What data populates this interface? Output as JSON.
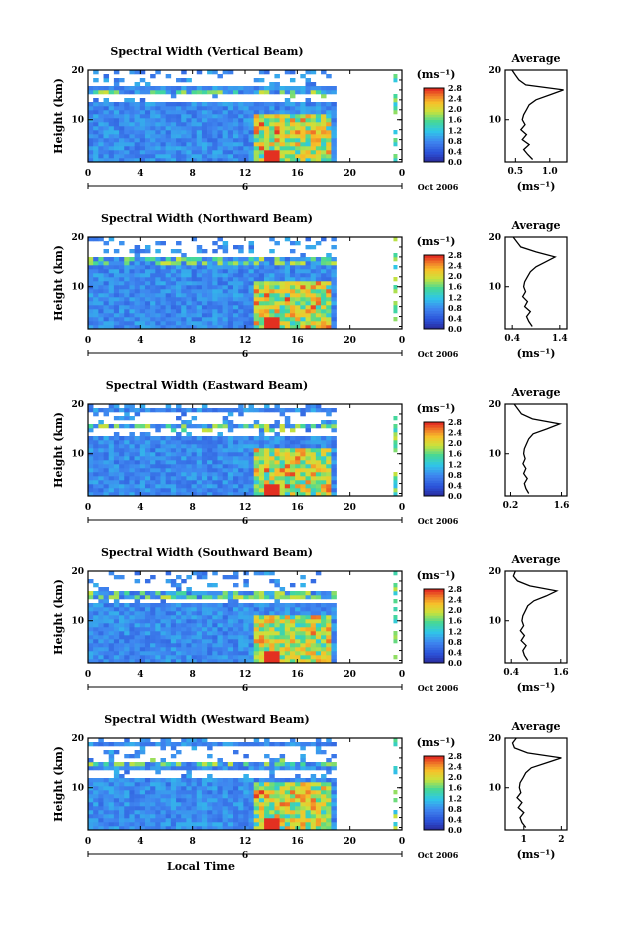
{
  "chart_data": {
    "type": "heatmap",
    "xlabel": "Local Time",
    "date_label": "Oct 2006",
    "day_label": "6",
    "unit_label": "(ms⁻¹)",
    "x_ticks": [
      "0",
      "4",
      "8",
      "12",
      "16",
      "20",
      "0"
    ],
    "y_ticks": [
      "20",
      "10"
    ],
    "xlim": [
      0,
      24
    ],
    "ylim": [
      1.5,
      20
    ],
    "ylabel": "Height (km)",
    "colorbar_ticks": [
      "2.8",
      "2.4",
      "2.0",
      "1.6",
      "1.2",
      "0.8",
      "0.4",
      "0.0"
    ],
    "colorbar_range": [
      0.0,
      2.8
    ],
    "data_end_hour": 19,
    "side_strip_hour": 23.5,
    "panels": [
      {
        "title": "Spectral Width (Vertical Beam)",
        "avg_title": "Average",
        "avg_xticks": [
          "0.5",
          "1.0"
        ],
        "avg_xtick_values": [
          0.5,
          1.0
        ],
        "avg_xlim": [
          0.35,
          1.25
        ],
        "avg_xlabel": "(ms⁻¹)",
        "avg_profile": {
          "height": [
            2,
            3,
            4,
            5,
            6,
            7,
            8,
            9,
            10,
            11,
            12,
            13,
            14,
            15,
            16,
            17,
            18,
            19,
            20
          ],
          "value": [
            0.75,
            0.68,
            0.62,
            0.7,
            0.6,
            0.66,
            0.58,
            0.64,
            0.6,
            0.62,
            0.66,
            0.7,
            0.8,
            1.0,
            1.2,
            0.65,
            0.55,
            0.5,
            0.45
          ]
        }
      },
      {
        "title": "Spectral Width (Northward Beam)",
        "avg_title": "Average",
        "avg_xticks": [
          "0.4",
          "1.4"
        ],
        "avg_xtick_values": [
          0.4,
          1.4
        ],
        "avg_xlim": [
          0.25,
          1.55
        ],
        "avg_xlabel": "(ms⁻¹)",
        "avg_profile": {
          "height": [
            2,
            3,
            4,
            5,
            6,
            7,
            8,
            9,
            10,
            11,
            12,
            13,
            14,
            15,
            16,
            17,
            18,
            19,
            20
          ],
          "value": [
            0.82,
            0.75,
            0.7,
            0.78,
            0.66,
            0.72,
            0.62,
            0.68,
            0.64,
            0.66,
            0.72,
            0.78,
            0.9,
            1.1,
            1.3,
            0.9,
            0.58,
            0.5,
            0.42
          ]
        }
      },
      {
        "title": "Spectral Width (Eastward Beam)",
        "avg_title": "Average",
        "avg_xticks": [
          "0.2",
          "1.6"
        ],
        "avg_xtick_values": [
          0.2,
          1.6
        ],
        "avg_xlim": [
          0.05,
          1.75
        ],
        "avg_xlabel": "",
        "avg_profile": {
          "height": [
            2,
            3,
            4,
            5,
            6,
            7,
            8,
            9,
            10,
            11,
            12,
            13,
            14,
            15,
            16,
            17,
            18,
            19,
            20
          ],
          "value": [
            0.7,
            0.62,
            0.58,
            0.66,
            0.56,
            0.62,
            0.54,
            0.6,
            0.56,
            0.58,
            0.64,
            0.7,
            0.82,
            1.2,
            1.55,
            0.8,
            0.5,
            0.4,
            0.3
          ]
        }
      },
      {
        "title": "Spectral Width (Southward Beam)",
        "avg_title": "Average",
        "avg_xticks": [
          "0.4",
          "1.6"
        ],
        "avg_xtick_values": [
          0.4,
          1.6
        ],
        "avg_xlim": [
          0.25,
          1.75
        ],
        "avg_xlabel": "(ms⁻¹)",
        "avg_profile": {
          "height": [
            2,
            3,
            4,
            5,
            6,
            7,
            8,
            9,
            10,
            11,
            12,
            13,
            14,
            15,
            16,
            17,
            18,
            19,
            20
          ],
          "value": [
            0.8,
            0.72,
            0.68,
            0.76,
            0.64,
            0.72,
            0.62,
            0.7,
            0.66,
            0.68,
            0.74,
            0.8,
            0.95,
            1.25,
            1.5,
            0.85,
            0.55,
            0.45,
            0.5
          ]
        }
      },
      {
        "title": "Spectral Width (Westward Beam)",
        "avg_title": "Average",
        "avg_xticks": [
          "1",
          "2"
        ],
        "avg_xtick_values": [
          1,
          2
        ],
        "avg_xlim": [
          0.5,
          2.15
        ],
        "avg_xlabel": "(ms⁻¹)",
        "avg_profile": {
          "height": [
            2,
            3,
            4,
            5,
            6,
            7,
            8,
            9,
            10,
            11,
            12,
            13,
            14,
            15,
            16,
            17,
            18,
            19,
            20
          ],
          "value": [
            1.05,
            0.95,
            0.9,
            1.0,
            0.85,
            0.95,
            0.82,
            0.92,
            0.88,
            0.9,
            0.98,
            1.05,
            1.2,
            1.6,
            2.0,
            1.1,
            0.75,
            0.7,
            0.8
          ]
        }
      }
    ]
  }
}
